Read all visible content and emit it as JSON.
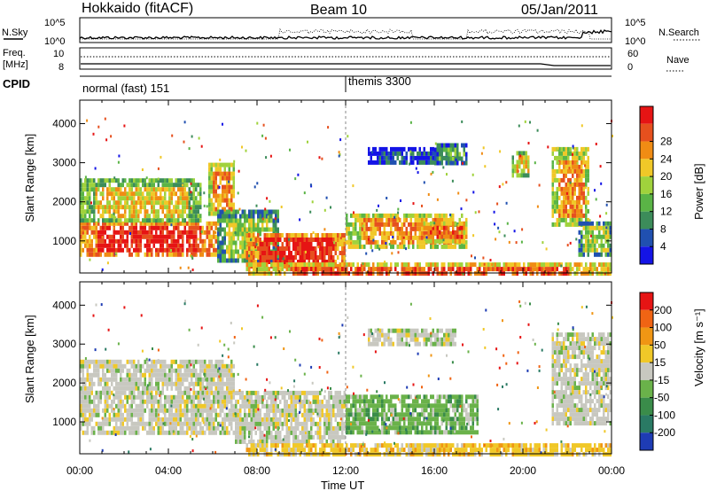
{
  "header": {
    "station": "Hokkaido (fitACF)",
    "beam": "Beam 10",
    "date": "05/Jan/2011"
  },
  "top_panels": {
    "nsky_label": "N.Sky",
    "nsky_ticks": [
      "10^5",
      "10^0"
    ],
    "nsearch_label": "N.Search",
    "nsearch_ticks": [
      "10^5",
      "10^0"
    ],
    "freq_label_1": "Freq.",
    "freq_label_2": "[MHz]",
    "freq_ticks": [
      "10",
      "8"
    ],
    "nave_label": "Nave",
    "nave_ticks": [
      "60",
      "0"
    ],
    "cpid_label": "CPID",
    "cpid_segments": [
      {
        "start_hour": 0,
        "label": "normal (fast) 151"
      },
      {
        "start_hour": 12,
        "label": "themis 3300"
      }
    ]
  },
  "chart_data": [
    {
      "type": "heatmap",
      "title": "",
      "xlabel": "Time UT",
      "ylabel": "Slant Range [km]",
      "x_range_hours": [
        0,
        24
      ],
      "ylim": [
        180,
        4600
      ],
      "yticks": [
        1000,
        2000,
        3000,
        4000
      ],
      "xticks": [
        "00:00",
        "04:00",
        "08:00",
        "12:00",
        "16:00",
        "20:00",
        "00:00"
      ],
      "colorbar": {
        "label": "Power [dB]",
        "ticks": [
          "4",
          "8",
          "12",
          "16",
          "20",
          "24",
          "28"
        ],
        "colors": [
          "#1414e6",
          "#2050b0",
          "#3c8c5a",
          "#5ab446",
          "#a0d23c",
          "#f0c828",
          "#f08c14",
          "#e6501e",
          "#e61414"
        ]
      },
      "echo_regions": [
        {
          "t0": 0.0,
          "t1": 6.2,
          "r0": 700,
          "r1": 1500,
          "level": 8
        },
        {
          "t0": 0.0,
          "t1": 5.5,
          "r0": 1500,
          "r1": 2600,
          "level": 5
        },
        {
          "t0": 5.8,
          "t1": 7.0,
          "r0": 1700,
          "r1": 3000,
          "level": 6
        },
        {
          "t0": 6.2,
          "t1": 9.0,
          "r0": 500,
          "r1": 1800,
          "level": 4
        },
        {
          "t0": 7.5,
          "t1": 12.0,
          "r0": 400,
          "r1": 1200,
          "level": 8
        },
        {
          "t0": 12.0,
          "t1": 17.5,
          "r0": 800,
          "r1": 1700,
          "level": 6
        },
        {
          "t0": 15.5,
          "t1": 17.5,
          "r0": 1000,
          "r1": 1500,
          "level": 7
        },
        {
          "t0": 13.0,
          "t1": 17.0,
          "r0": 3000,
          "r1": 3400,
          "level": 1
        },
        {
          "t0": 16.0,
          "t1": 17.5,
          "r0": 3000,
          "r1": 3500,
          "level": 3
        },
        {
          "t0": 19.5,
          "t1": 20.3,
          "r0": 2700,
          "r1": 3300,
          "level": 5
        },
        {
          "t0": 21.3,
          "t1": 23.0,
          "r0": 1400,
          "r1": 3400,
          "level": 6
        },
        {
          "t0": 22.5,
          "t1": 24.0,
          "r0": 700,
          "r1": 1500,
          "level": 4
        },
        {
          "t0": 7.5,
          "t1": 24.0,
          "r0": 180,
          "r1": 450,
          "level": 7
        }
      ]
    },
    {
      "type": "heatmap",
      "title": "",
      "xlabel": "Time UT",
      "ylabel": "Slant Range [km]",
      "x_range_hours": [
        0,
        24
      ],
      "ylim": [
        180,
        4600
      ],
      "yticks": [
        1000,
        2000,
        3000,
        4000
      ],
      "xticks": [
        "00:00",
        "04:00",
        "08:00",
        "12:00",
        "16:00",
        "20:00",
        "00:00"
      ],
      "colorbar": {
        "label": "Velocity [m s⁻¹]",
        "ticks": [
          "200",
          "100",
          "50",
          "15",
          "-15",
          "-50",
          "-100",
          "-200"
        ],
        "colors": [
          "#1e3cb4",
          "#2a7a64",
          "#3a8c4a",
          "#6ab24a",
          "#c8c8c0",
          "#f0c828",
          "#f09614",
          "#f06414",
          "#e61414"
        ]
      },
      "echo_regions": [
        {
          "t0": 0.0,
          "t1": 7.0,
          "r0": 700,
          "r1": 2600,
          "level": 4
        },
        {
          "t0": 7.0,
          "t1": 12.0,
          "r0": 500,
          "r1": 1800,
          "level": 4
        },
        {
          "t0": 12.0,
          "t1": 18.0,
          "r0": 700,
          "r1": 1700,
          "level": 3
        },
        {
          "t0": 13.0,
          "t1": 17.0,
          "r0": 3000,
          "r1": 3400,
          "level": 4
        },
        {
          "t0": 21.3,
          "t1": 24.0,
          "r0": 1000,
          "r1": 3300,
          "level": 4
        },
        {
          "t0": 7.5,
          "t1": 24.0,
          "r0": 180,
          "r1": 450,
          "level": 5
        }
      ]
    }
  ]
}
